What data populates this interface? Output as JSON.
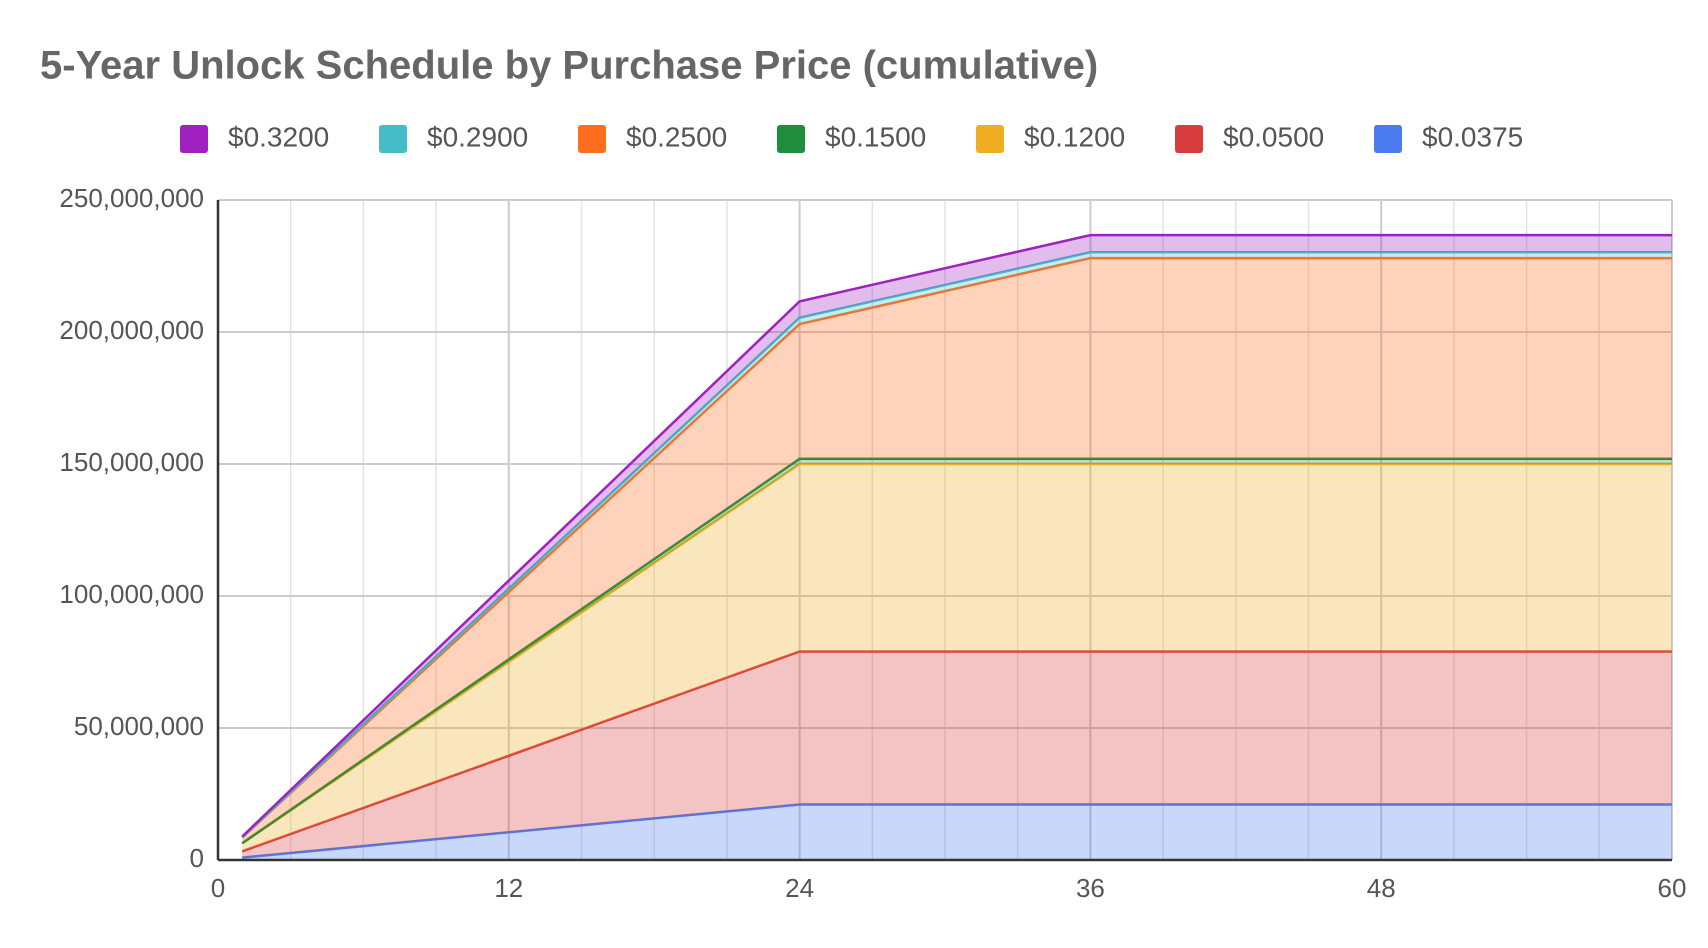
{
  "chart_data": {
    "type": "stacked_area",
    "title": "5-Year Unlock Schedule by Purchase Price (cumulative)",
    "x": [
      1,
      24,
      36,
      60
    ],
    "series": [
      {
        "name": "$0.3200",
        "color": "#a020c0",
        "values": [
          0.3,
          6.2,
          6.5,
          6.5
        ]
      },
      {
        "name": "$0.2900",
        "color": "#46bdc6",
        "values": [
          0.1,
          2.4,
          2.2,
          2.2
        ]
      },
      {
        "name": "$0.2500",
        "color": "#ff6d1f",
        "values": [
          2.1,
          51,
          76,
          76
        ]
      },
      {
        "name": "$0.1500",
        "color": "#1e8e3e",
        "values": [
          0.1,
          2,
          2,
          2
        ]
      },
      {
        "name": "$0.1200",
        "color": "#f0ad22",
        "values": [
          3,
          71,
          71,
          71
        ]
      },
      {
        "name": "$0.0500",
        "color": "#d93c3c",
        "values": [
          2.4,
          58,
          58,
          58
        ]
      },
      {
        "name": "$0.0375",
        "color": "#4a7cf0",
        "values": [
          0.9,
          21,
          21,
          21
        ]
      }
    ],
    "xlim": [
      0,
      60
    ],
    "xticks": [
      0,
      12,
      24,
      36,
      48,
      60
    ],
    "ylim": [
      0,
      250
    ],
    "yticks": [
      {
        "value": 0,
        "label": "0"
      },
      {
        "value": 50,
        "label": "50,000,000"
      },
      {
        "value": 100,
        "label": "100,000,000"
      },
      {
        "value": 150,
        "label": "150,000,000"
      },
      {
        "value": 200,
        "label": "200,000,000"
      },
      {
        "value": 250,
        "label": "250,000,000"
      }
    ],
    "grid": true,
    "legend": "top"
  }
}
